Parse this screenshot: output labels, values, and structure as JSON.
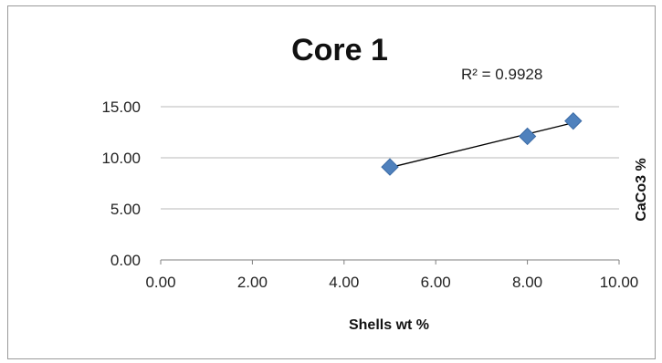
{
  "chart_data": {
    "type": "scatter",
    "title": "Core 1",
    "xlabel": "Shells wt %",
    "ylabel": "CaCo3 %",
    "xlim": [
      0,
      10
    ],
    "ylim": [
      0,
      15
    ],
    "x_ticks": [
      "0.00",
      "2.00",
      "4.00",
      "6.00",
      "8.00",
      "10.00"
    ],
    "y_ticks": [
      "0.00",
      "5.00",
      "10.00",
      "15.00"
    ],
    "x_tick_values": [
      0,
      2,
      4,
      6,
      8,
      10
    ],
    "y_tick_values": [
      0,
      5,
      10,
      15
    ],
    "grid": "horizontal",
    "marker": "diamond",
    "marker_color": "#4f81bd",
    "trendline_color": "#000000",
    "points": [
      {
        "x": 5,
        "y": 9.1
      },
      {
        "x": 8,
        "y": 12.1
      },
      {
        "x": 9,
        "y": 13.6
      }
    ],
    "trendline": {
      "x_start": 5,
      "x_end": 9
    },
    "annotation": "R² = 0.9928"
  }
}
